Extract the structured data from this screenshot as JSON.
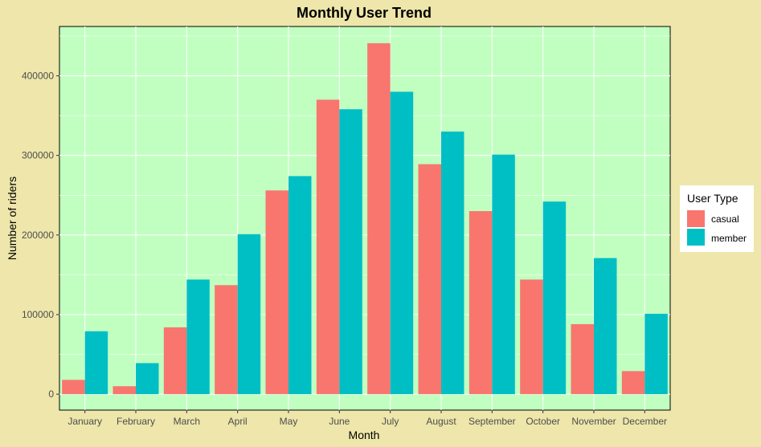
{
  "chart_data": {
    "type": "bar",
    "title": "Monthly User Trend",
    "xlabel": "Month",
    "ylabel": "Number of riders",
    "categories": [
      "January",
      "February",
      "March",
      "April",
      "May",
      "June",
      "July",
      "August",
      "September",
      "October",
      "November",
      "December"
    ],
    "series": [
      {
        "name": "casual",
        "color": "#F8766D",
        "values": [
          18000,
          10000,
          84000,
          137000,
          256000,
          370000,
          441000,
          289000,
          230000,
          144000,
          88000,
          29000
        ]
      },
      {
        "name": "member",
        "color": "#00BFC4",
        "values": [
          79000,
          39000,
          144000,
          201000,
          274000,
          358000,
          380000,
          330000,
          301000,
          242000,
          171000,
          101000
        ]
      }
    ],
    "yticks": [
      0,
      100000,
      200000,
      300000,
      400000
    ],
    "ytick_labels": [
      "0",
      "100000",
      "200000",
      "300000",
      "400000"
    ],
    "ylim": [
      -20000,
      462000
    ],
    "grid": true,
    "legend": {
      "title": "User Type",
      "position": "right"
    },
    "colors": {
      "page_background": "#EEE6AA",
      "panel_background": "#C1FFC1",
      "grid": "#FFFFFF"
    }
  }
}
